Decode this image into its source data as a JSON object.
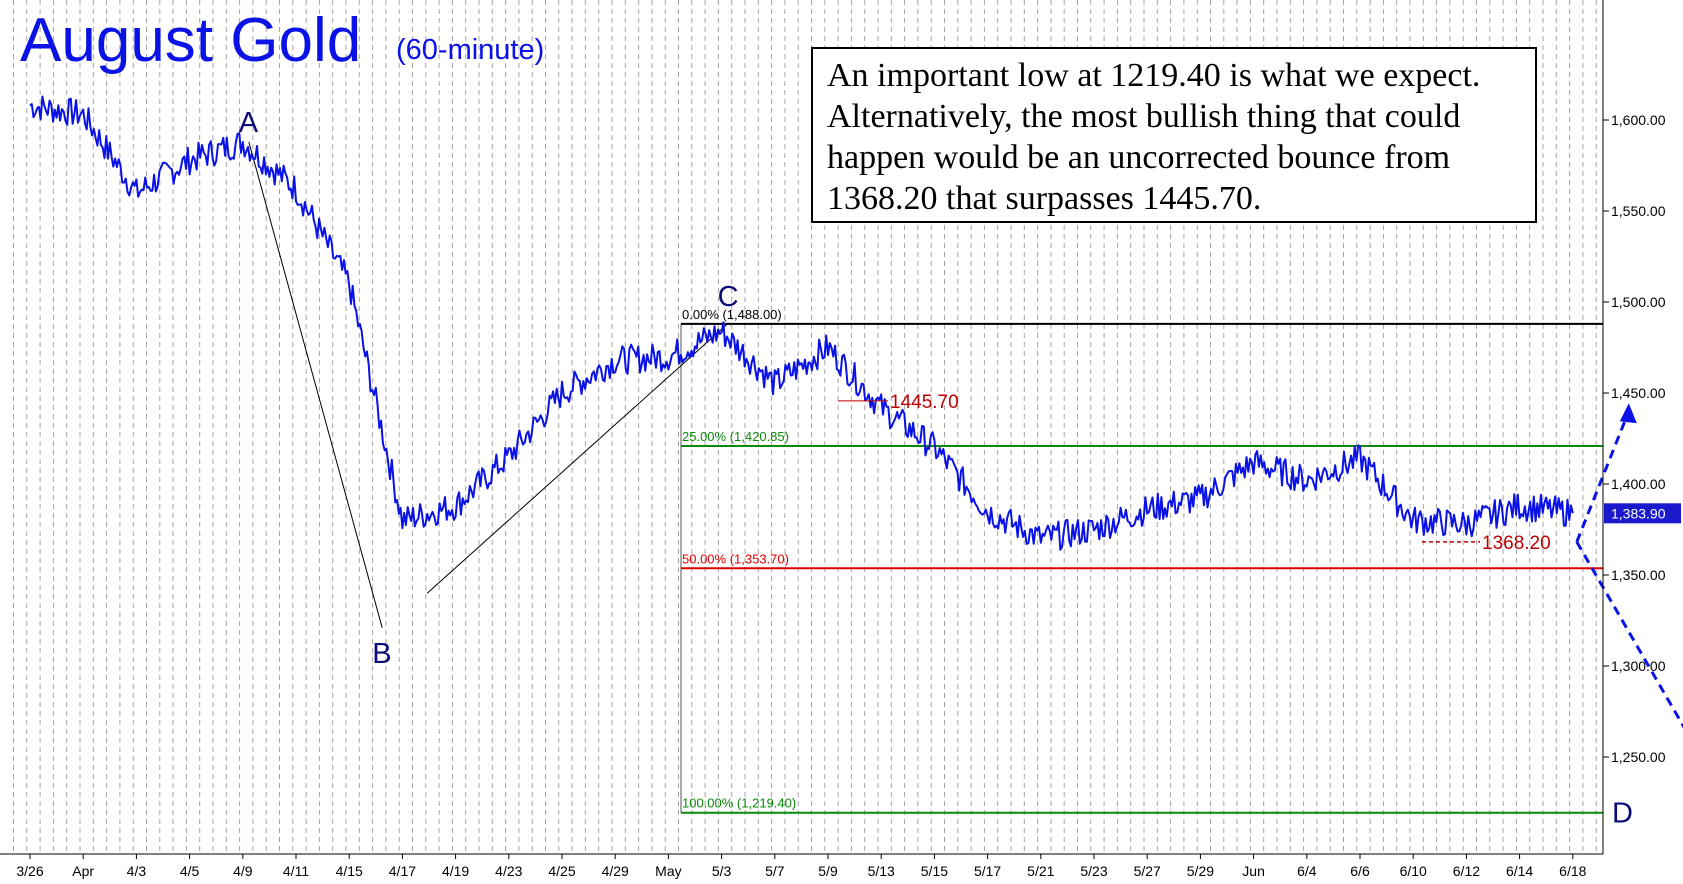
{
  "title": "August Gold",
  "subtitle": "(60-minute)",
  "note": "An important low at 1219.40 is what we expect. Alternatively, the most bullish thing that could happen would be an uncorrected bounce from 1368.20 that surpasses 1445.70.",
  "colors": {
    "price": "#0a12e6",
    "fib_zero": "#000000",
    "fib_25": "#0a8a0a",
    "fib_50": "#e00000",
    "fib_100": "#0a8a0a",
    "marker": "#c00000",
    "grid": "#888888",
    "last_price_box": "#1a1acc"
  },
  "chart_data": {
    "type": "line",
    "title": "August Gold",
    "subtitle": "(60-minute)",
    "ylim": [
      1210,
      1640
    ],
    "y_ticks": [
      {
        "value": 1600,
        "label": "1,600.00"
      },
      {
        "value": 1550,
        "label": "1,550.00"
      },
      {
        "value": 1500,
        "label": "1,500.00"
      },
      {
        "value": 1450,
        "label": "1,450.00"
      },
      {
        "value": 1400,
        "label": "1,400.00"
      },
      {
        "value": 1350,
        "label": "1,350.00"
      },
      {
        "value": 1300,
        "label": "1,300.00"
      },
      {
        "value": 1250,
        "label": "1,250.00"
      }
    ],
    "x_ticks": [
      "3/26",
      "Apr",
      "4/3",
      "4/5",
      "4/9",
      "4/11",
      "4/15",
      "4/17",
      "4/19",
      "4/23",
      "4/25",
      "4/29",
      "May",
      "5/3",
      "5/7",
      "5/9",
      "5/13",
      "5/15",
      "5/17",
      "5/21",
      "5/23",
      "5/27",
      "5/29",
      "Jun",
      "6/4",
      "6/6",
      "6/10",
      "6/12",
      "6/14",
      "6/18"
    ],
    "grid": true,
    "last_price": {
      "value": 1383.9,
      "label": "1,383.90"
    },
    "series": [
      {
        "x": [
          "3/26",
          "Apr",
          "4/3",
          "4/5",
          "4/9",
          "4/11",
          "4/15",
          "4/17",
          "4/19",
          "4/23",
          "4/25",
          "4/29",
          "May",
          "5/3",
          "5/7",
          "5/9",
          "5/13",
          "5/15",
          "5/17",
          "5/21",
          "5/23",
          "5/27",
          "5/29",
          "Jun",
          "6/4",
          "6/6",
          "6/10",
          "6/12",
          "6/14",
          "6/18"
        ],
        "values": [
          1608,
          1603,
          1560,
          1578,
          1588,
          1562,
          1510,
          1380,
          1388,
          1415,
          1450,
          1468,
          1470,
          1484,
          1455,
          1475,
          1442,
          1420,
          1385,
          1370,
          1375,
          1386,
          1392,
          1412,
          1402,
          1414,
          1380,
          1378,
          1388,
          1384
        ]
      }
    ],
    "wave_points": [
      {
        "label": "A",
        "x": "4/9",
        "value": 1588
      },
      {
        "label": "B",
        "x": "4/15",
        "value": 1321
      },
      {
        "label": "C",
        "x": "5/3",
        "value": 1488
      },
      {
        "label": "D",
        "x": "6/18",
        "value": 1219.4
      }
    ],
    "fib_levels": [
      {
        "label": "0.00% (1,488.00)",
        "value": 1488.0,
        "color_key": "fib_zero"
      },
      {
        "label": "25.00% (1,420.85)",
        "value": 1420.85,
        "color_key": "fib_25"
      },
      {
        "label": "50.00% (1,353.70)",
        "value": 1353.7,
        "color_key": "fib_50"
      },
      {
        "label": "100.00% (1,219.40)",
        "value": 1219.4,
        "color_key": "fib_100"
      }
    ],
    "annotations": [
      {
        "label": "1445.70",
        "value": 1445.7
      },
      {
        "label": "1368.20",
        "value": 1368.2
      }
    ]
  }
}
